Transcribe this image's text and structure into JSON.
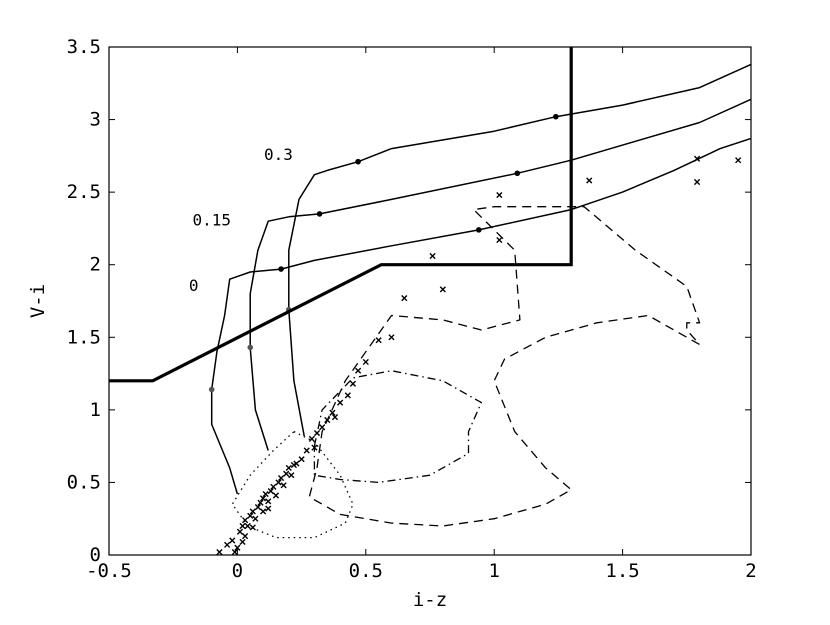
{
  "chart_data": {
    "type": "line",
    "title": "",
    "xlabel": "i-z",
    "ylabel": "V-i",
    "xlim": [
      -0.5,
      2
    ],
    "ylim": [
      0,
      3.5
    ],
    "x_ticks": [
      -0.5,
      0,
      0.5,
      1,
      1.5,
      2
    ],
    "x_tick_labels": [
      "-0.5",
      "0",
      "0.5",
      "1",
      "1.5",
      "2"
    ],
    "y_ticks": [
      0,
      0.5,
      1,
      1.5,
      2,
      2.5,
      3,
      3.5
    ],
    "y_tick_labels": [
      "0",
      "0.5",
      "1",
      "1.5",
      "2",
      "2.5",
      "3",
      "3.5"
    ],
    "grid": false,
    "selection_boundary": {
      "style": "thick-solid",
      "points": [
        [
          -0.5,
          1.2
        ],
        [
          -0.33,
          1.2
        ],
        [
          0.56,
          2.0
        ],
        [
          1.3,
          2.0
        ],
        [
          1.3,
          3.5
        ]
      ]
    },
    "tracks": [
      {
        "label": "0",
        "points": [
          [
            0,
            0.42
          ],
          [
            -0.03,
            0.6
          ],
          [
            -0.1,
            0.9
          ],
          [
            -0.1,
            1.14
          ],
          [
            -0.08,
            1.4
          ],
          [
            -0.05,
            1.65
          ],
          [
            -0.03,
            1.9
          ],
          [
            0.05,
            1.95
          ],
          [
            0.17,
            1.97
          ],
          [
            0.3,
            2.03
          ],
          [
            0.6,
            2.13
          ],
          [
            0.94,
            2.24
          ],
          [
            1.3,
            2.38
          ],
          [
            1.5,
            2.5
          ],
          [
            1.7,
            2.65
          ],
          [
            1.88,
            2.8
          ],
          [
            2.0,
            2.87
          ]
        ],
        "markers": [
          [
            -0.1,
            1.14
          ],
          [
            0.17,
            1.97
          ],
          [
            0.94,
            2.24
          ]
        ]
      },
      {
        "label": "0.15",
        "points": [
          [
            0.12,
            0.72
          ],
          [
            0.07,
            1.0
          ],
          [
            0.05,
            1.43
          ],
          [
            0.05,
            1.8
          ],
          [
            0.08,
            2.1
          ],
          [
            0.12,
            2.3
          ],
          [
            0.2,
            2.33
          ],
          [
            0.32,
            2.35
          ],
          [
            0.6,
            2.45
          ],
          [
            1.09,
            2.63
          ],
          [
            1.3,
            2.72
          ],
          [
            1.55,
            2.85
          ],
          [
            1.8,
            2.98
          ],
          [
            2.0,
            3.14
          ]
        ],
        "markers": [
          [
            0.05,
            1.43
          ],
          [
            0.32,
            2.35
          ],
          [
            1.09,
            2.63
          ]
        ]
      },
      {
        "label": "0.3",
        "points": [
          [
            0.26,
            0.82
          ],
          [
            0.22,
            1.2
          ],
          [
            0.2,
            1.69
          ],
          [
            0.2,
            2.1
          ],
          [
            0.24,
            2.45
          ],
          [
            0.3,
            2.62
          ],
          [
            0.35,
            2.65
          ],
          [
            0.47,
            2.71
          ],
          [
            0.6,
            2.8
          ],
          [
            1.0,
            2.92
          ],
          [
            1.24,
            3.02
          ],
          [
            1.5,
            3.1
          ],
          [
            1.8,
            3.22
          ],
          [
            2.0,
            3.38
          ]
        ],
        "markers": [
          [
            0.2,
            1.69
          ],
          [
            0.47,
            2.71
          ],
          [
            1.24,
            3.02
          ]
        ]
      }
    ],
    "track_labels": [
      {
        "text": "0",
        "x": -0.17,
        "y": 1.82
      },
      {
        "text": "0.15",
        "x": -0.1,
        "y": 2.27
      },
      {
        "text": "0.3",
        "x": 0.16,
        "y": 2.72
      }
    ],
    "contours": [
      {
        "style": "dotted",
        "points": [
          [
            0.22,
            0.85
          ],
          [
            0.3,
            0.78
          ],
          [
            0.4,
            0.55
          ],
          [
            0.45,
            0.35
          ],
          [
            0.42,
            0.22
          ],
          [
            0.3,
            0.12
          ],
          [
            0.15,
            0.12
          ],
          [
            0.04,
            0.2
          ],
          [
            -0.02,
            0.35
          ],
          [
            0.05,
            0.55
          ],
          [
            0.14,
            0.72
          ],
          [
            0.22,
            0.85
          ]
        ]
      },
      {
        "style": "dash-dot",
        "points": [
          [
            0.3,
            0.75
          ],
          [
            0.33,
            1.0
          ],
          [
            0.45,
            1.22
          ],
          [
            0.6,
            1.27
          ],
          [
            0.8,
            1.2
          ],
          [
            0.95,
            1.05
          ],
          [
            0.9,
            0.85
          ],
          [
            0.9,
            0.7
          ],
          [
            0.75,
            0.55
          ],
          [
            0.55,
            0.5
          ],
          [
            0.4,
            0.52
          ],
          [
            0.3,
            0.55
          ],
          [
            0.3,
            0.75
          ]
        ]
      },
      {
        "style": "dashed",
        "points": [
          [
            0.31,
            0.6
          ],
          [
            0.33,
            0.85
          ],
          [
            0.42,
            1.2
          ],
          [
            0.5,
            1.4
          ],
          [
            0.6,
            1.65
          ],
          [
            0.8,
            1.62
          ],
          [
            0.95,
            1.55
          ],
          [
            1.1,
            1.62
          ],
          [
            1.08,
            2.1
          ],
          [
            0.92,
            2.38
          ],
          [
            1.0,
            2.4
          ],
          [
            1.2,
            2.4
          ],
          [
            1.35,
            2.4
          ],
          [
            1.55,
            2.1
          ],
          [
            1.75,
            1.85
          ],
          [
            1.8,
            1.6
          ],
          [
            1.75,
            1.6
          ],
          [
            1.75,
            1.55
          ],
          [
            1.8,
            1.45
          ],
          [
            1.6,
            1.65
          ],
          [
            1.4,
            1.6
          ],
          [
            1.2,
            1.5
          ],
          [
            1.04,
            1.35
          ],
          [
            1.0,
            1.2
          ],
          [
            1.08,
            0.85
          ],
          [
            1.2,
            0.6
          ],
          [
            1.3,
            0.45
          ],
          [
            1.2,
            0.35
          ],
          [
            1.0,
            0.25
          ],
          [
            0.8,
            0.2
          ],
          [
            0.6,
            0.22
          ],
          [
            0.4,
            0.28
          ],
          [
            0.28,
            0.4
          ],
          [
            0.31,
            0.6
          ]
        ]
      }
    ],
    "scatter": {
      "marker": "x",
      "points": [
        [
          -0.07,
          0.02
        ],
        [
          -0.04,
          0.07
        ],
        [
          -0.02,
          0.1
        ],
        [
          0,
          0.05
        ],
        [
          0.01,
          0.16
        ],
        [
          0.02,
          0.2
        ],
        [
          0.03,
          0.13
        ],
        [
          0.03,
          0.24
        ],
        [
          0.04,
          0.2
        ],
        [
          0.05,
          0.27
        ],
        [
          0.06,
          0.3
        ],
        [
          0.07,
          0.25
        ],
        [
          0.08,
          0.33
        ],
        [
          0.09,
          0.36
        ],
        [
          0.1,
          0.3
        ],
        [
          0.1,
          0.39
        ],
        [
          0.11,
          0.42
        ],
        [
          0.12,
          0.37
        ],
        [
          0.13,
          0.44
        ],
        [
          0.14,
          0.47
        ],
        [
          0.15,
          0.41
        ],
        [
          0.16,
          0.5
        ],
        [
          0.17,
          0.53
        ],
        [
          0.18,
          0.48
        ],
        [
          0.19,
          0.56
        ],
        [
          0.2,
          0.6
        ],
        [
          0.21,
          0.55
        ],
        [
          0.23,
          0.63
        ],
        [
          0.25,
          0.66
        ],
        [
          0.27,
          0.72
        ],
        [
          0.29,
          0.8
        ],
        [
          0.31,
          0.84
        ],
        [
          0.33,
          0.88
        ],
        [
          0.35,
          0.93
        ],
        [
          0.37,
          0.98
        ],
        [
          0.4,
          1.05
        ],
        [
          0.43,
          1.1
        ],
        [
          0.45,
          1.18
        ],
        [
          0.47,
          1.27
        ],
        [
          0.5,
          1.33
        ],
        [
          0.55,
          1.48
        ],
        [
          0.6,
          1.5
        ],
        [
          0.65,
          1.77
        ],
        [
          0.76,
          2.06
        ],
        [
          0.8,
          1.83
        ],
        [
          1.02,
          2.48
        ],
        [
          1.02,
          2.17
        ],
        [
          1.37,
          2.58
        ],
        [
          1.79,
          2.73
        ],
        [
          1.79,
          2.57
        ],
        [
          1.95,
          2.72
        ],
        [
          -0.01,
          0.02
        ],
        [
          0.02,
          0.09
        ],
        [
          0.06,
          0.19
        ],
        [
          0.12,
          0.32
        ],
        [
          0.22,
          0.62
        ],
        [
          0.3,
          0.74
        ],
        [
          0.38,
          0.95
        ]
      ]
    }
  }
}
